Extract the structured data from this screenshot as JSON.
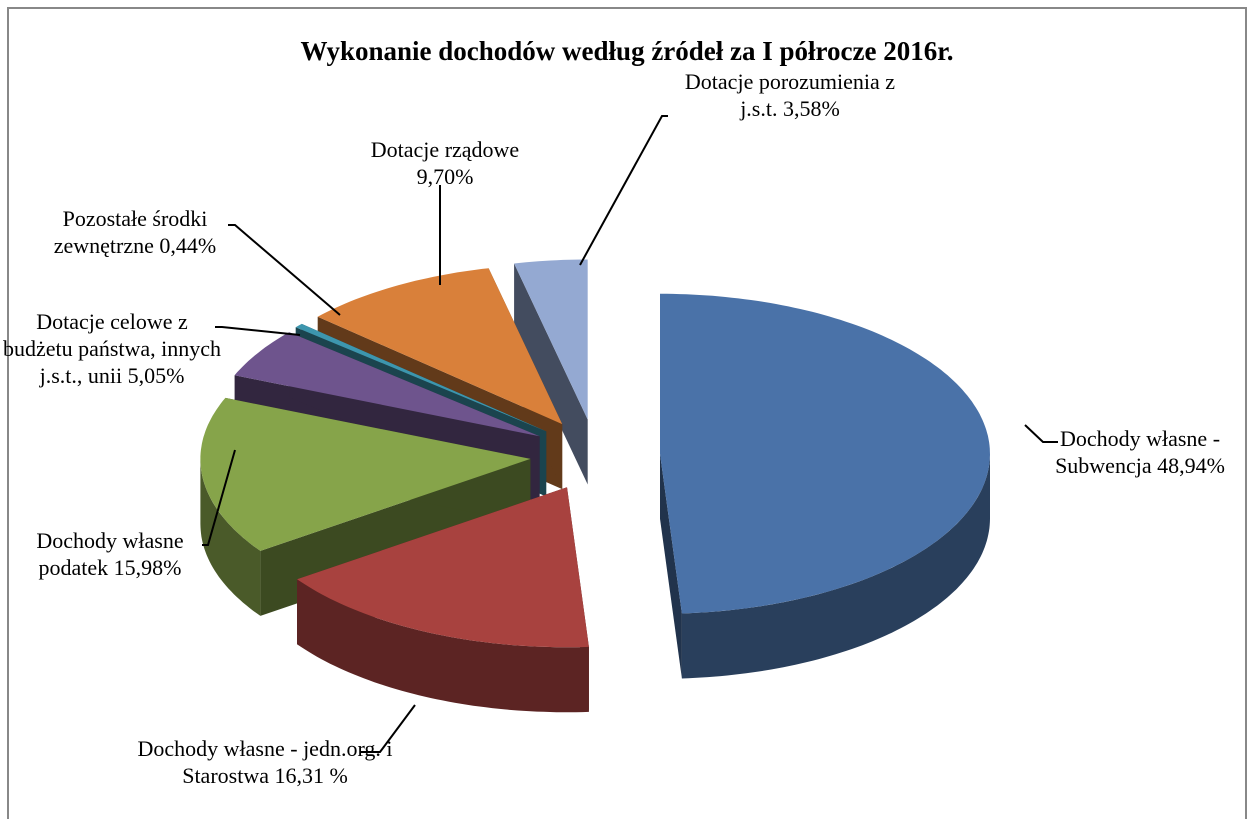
{
  "chart_data": {
    "type": "pie",
    "title": "Wykonanie  dochodów według źródeł za I półrocze 2016r.",
    "categories": [
      "Dochody własne - Subwencja",
      "Dochody własne - jedn.org. i Starostwa",
      "Dochody własne podatek",
      "Dotacje celowe z budżetu państwa, innych j.s.t., unii",
      "Pozostałe środki zewnętrzne",
      "Dotacje rządowe",
      "Dotacje porozumienia z j.s.t."
    ],
    "values": [
      48.94,
      16.31,
      15.98,
      5.05,
      0.44,
      9.7,
      3.58
    ],
    "value_labels": [
      "48,94%",
      "16,31 %",
      "15,98%",
      "5,05%",
      "0,44%",
      "9,70%",
      "3,58%"
    ],
    "colors": [
      "#4a72a8",
      "#a8423f",
      "#86a44a",
      "#6e548d",
      "#3d96ae",
      "#d9803a",
      "#94a9d2"
    ]
  }
}
